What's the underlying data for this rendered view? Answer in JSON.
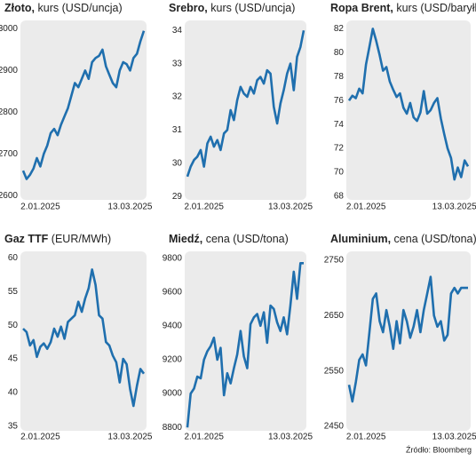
{
  "chart_data": [
    {
      "type": "line",
      "title": "Złoto,",
      "subtitle": "kurs (USD/uncja)",
      "color": "#1f6fae",
      "categories": [
        null,
        null,
        null,
        null,
        null,
        "2.01.2025",
        null,
        null,
        null,
        null,
        null,
        null,
        null,
        null,
        null,
        null,
        null,
        null,
        null,
        null,
        null,
        null,
        null,
        null,
        null,
        null,
        null,
        null,
        null,
        null,
        null,
        "13.03.2025",
        null,
        null,
        null,
        null
      ],
      "values": [
        2660,
        2640,
        2650,
        2665,
        2690,
        2670,
        2700,
        2720,
        2750,
        2760,
        2745,
        2770,
        2790,
        2810,
        2840,
        2870,
        2860,
        2880,
        2900,
        2880,
        2920,
        2930,
        2935,
        2950,
        2910,
        2890,
        2870,
        2860,
        2900,
        2920,
        2915,
        2900,
        2930,
        2940,
        2970,
        2995
      ],
      "ylim": [
        2590,
        3020
      ],
      "yticks": [
        2600,
        2700,
        2800,
        2900,
        3000
      ]
    },
    {
      "type": "line",
      "title": "Srebro,",
      "subtitle": "kurs (USD/uncja)",
      "color": "#1f6fae",
      "categories": [
        null,
        null,
        null,
        null,
        null,
        "2.01.2025",
        null,
        null,
        null,
        null,
        null,
        null,
        null,
        null,
        null,
        null,
        null,
        null,
        null,
        null,
        null,
        null,
        null,
        null,
        null,
        null,
        null,
        null,
        null,
        null,
        null,
        "13.03.2025",
        null,
        null,
        null,
        null
      ],
      "values": [
        29.6,
        29.9,
        30.1,
        30.2,
        30.4,
        29.9,
        30.6,
        30.8,
        30.5,
        30.7,
        30.4,
        30.9,
        31.0,
        31.6,
        31.3,
        31.9,
        32.3,
        32.1,
        32.0,
        32.3,
        32.1,
        32.5,
        32.6,
        32.4,
        32.8,
        32.7,
        31.7,
        31.2,
        31.8,
        32.2,
        32.7,
        33.0,
        32.2,
        33.2,
        33.5,
        34.0
      ],
      "ylim": [
        28.9,
        34.3
      ],
      "yticks": [
        29,
        30,
        31,
        32,
        33,
        34
      ]
    },
    {
      "type": "line",
      "title": "Ropa Brent,",
      "subtitle": "kurs (USD/baryłka)",
      "color": "#1f6fae",
      "categories": [
        null,
        null,
        null,
        null,
        null,
        "2.01.2025",
        null,
        null,
        null,
        null,
        null,
        null,
        null,
        null,
        null,
        null,
        null,
        null,
        null,
        null,
        null,
        null,
        null,
        null,
        null,
        null,
        null,
        null,
        null,
        null,
        null,
        "13.03.2025",
        null,
        null,
        null,
        null
      ],
      "values": [
        76.0,
        76.4,
        76.2,
        77.0,
        76.6,
        79.0,
        80.5,
        82.0,
        81.0,
        79.8,
        78.5,
        78.8,
        77.6,
        76.9,
        76.3,
        76.6,
        75.4,
        74.9,
        75.8,
        74.6,
        74.3,
        75.0,
        76.8,
        74.9,
        75.2,
        75.8,
        76.2,
        74.5,
        73.2,
        72.0,
        71.2,
        69.4,
        70.4,
        69.6,
        71.0,
        70.5
      ],
      "ylim": [
        67.7,
        82.7
      ],
      "yticks": [
        68,
        70,
        72,
        74,
        76,
        78,
        80,
        82
      ]
    },
    {
      "type": "line",
      "title": "Gaz TTF",
      "subtitle": "(EUR/MWh)",
      "color": "#1f6fae",
      "categories": [
        null,
        null,
        null,
        null,
        null,
        "2.01.2025",
        null,
        null,
        null,
        null,
        null,
        null,
        null,
        null,
        null,
        null,
        null,
        null,
        null,
        null,
        null,
        null,
        null,
        null,
        null,
        null,
        null,
        null,
        null,
        null,
        null,
        "13.03.2025",
        null,
        null,
        null,
        null
      ],
      "values": [
        49.5,
        49,
        47,
        47.8,
        45.3,
        46.8,
        47.3,
        46.5,
        47.5,
        49.5,
        48.3,
        49.8,
        48.0,
        50.5,
        51.0,
        51.5,
        53.5,
        52.0,
        54.0,
        55.5,
        58.3,
        56,
        51.5,
        51.0,
        47.5,
        47.0,
        45.5,
        44.5,
        41.5,
        45,
        44.2,
        40.5,
        38,
        41,
        43.5,
        42.8
      ],
      "ylim": [
        34.3,
        61
      ],
      "yticks": [
        35,
        40,
        45,
        50,
        55,
        60
      ]
    },
    {
      "type": "line",
      "title": "Miedź,",
      "subtitle": "cena (USD/tona)",
      "color": "#1f6fae",
      "categories": [
        null,
        null,
        null,
        null,
        null,
        "2.01.2025",
        null,
        null,
        null,
        null,
        null,
        null,
        null,
        null,
        null,
        null,
        null,
        null,
        null,
        null,
        null,
        null,
        null,
        null,
        null,
        null,
        null,
        null,
        null,
        null,
        null,
        "13.03.2025",
        null,
        null,
        null,
        null
      ],
      "values": [
        8800,
        9000,
        9030,
        9100,
        9090,
        9200,
        9250,
        9280,
        9330,
        9200,
        9270,
        8990,
        9120,
        9060,
        9150,
        9230,
        9370,
        9220,
        9150,
        9410,
        9450,
        9470,
        9400,
        9480,
        9300,
        9520,
        9500,
        9420,
        9370,
        9450,
        9350,
        9520,
        9720,
        9560,
        9770,
        9770
      ],
      "ylim": [
        8780,
        9840
      ],
      "yticks": [
        8800,
        9000,
        9200,
        9400,
        9600,
        9800
      ]
    },
    {
      "type": "line",
      "title": "Aluminium,",
      "subtitle": "cena (USD/tona)",
      "color": "#1f6fae",
      "categories": [
        null,
        null,
        null,
        null,
        null,
        "2.01.2025",
        null,
        null,
        null,
        null,
        null,
        null,
        null,
        null,
        null,
        null,
        null,
        null,
        null,
        null,
        null,
        null,
        null,
        null,
        null,
        null,
        null,
        null,
        null,
        null,
        null,
        "13.03.2025",
        null,
        null,
        null,
        null
      ],
      "values": [
        2525,
        2495,
        2530,
        2570,
        2580,
        2560,
        2620,
        2680,
        2690,
        2640,
        2620,
        2660,
        2630,
        2590,
        2640,
        2600,
        2660,
        2640,
        2610,
        2630,
        2660,
        2620,
        2660,
        2690,
        2720,
        2650,
        2630,
        2640,
        2605,
        2615,
        2690,
        2700,
        2690,
        2700,
        2700,
        2700
      ],
      "ylim": [
        2442,
        2766
      ],
      "yticks": [
        2450,
        2550,
        2650,
        2750
      ]
    }
  ],
  "source": "Źródło: Bloomberg"
}
